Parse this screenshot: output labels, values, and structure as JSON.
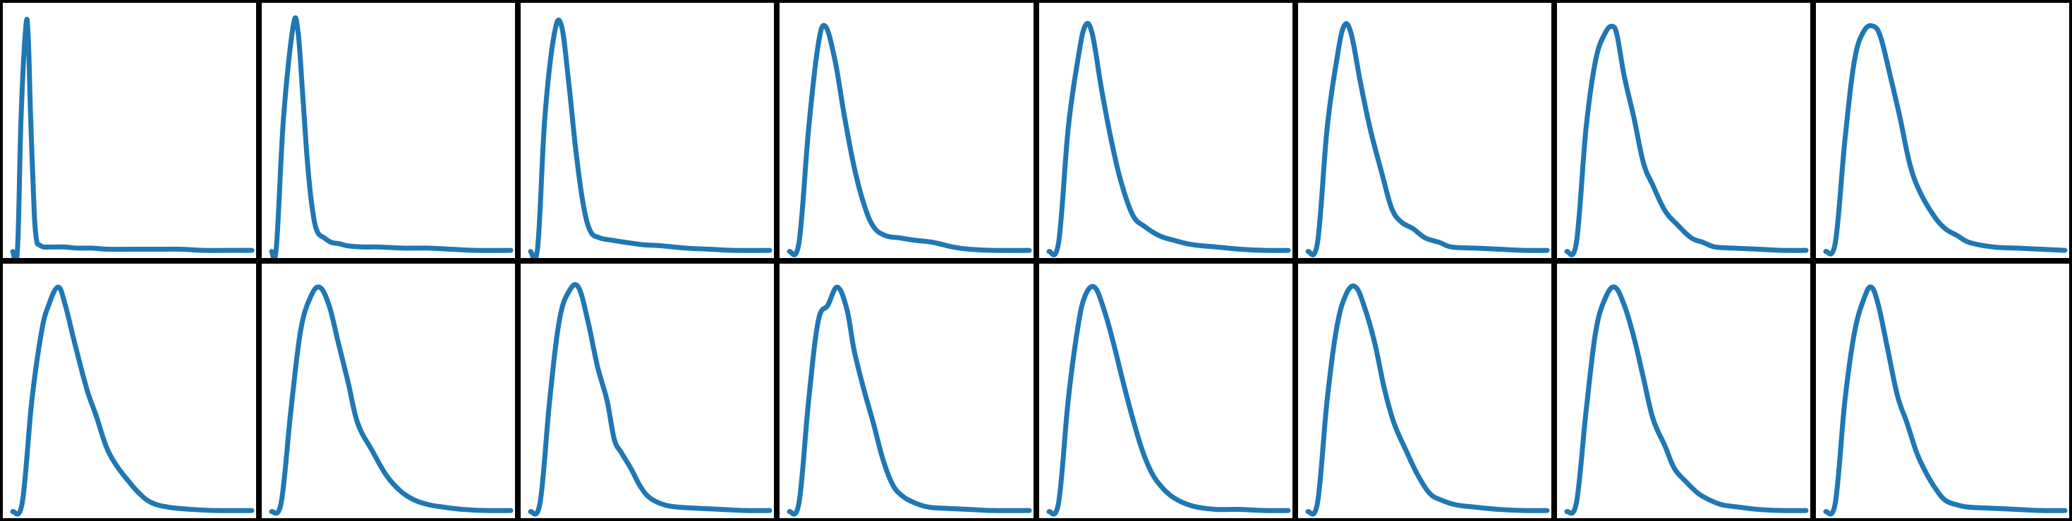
{
  "line_color": "#1f77b4",
  "chart_data": [
    {
      "type": "line",
      "x": [
        0,
        0.02,
        0.035,
        0.055,
        0.065,
        0.075,
        0.09,
        0.1,
        0.11,
        0.13,
        0.15,
        0.18,
        0.22,
        0.27,
        0.33,
        0.4,
        0.5,
        0.6,
        0.7,
        0.8,
        0.9,
        1
      ],
      "y": [
        0.01,
        0.02,
        0.6,
        1.0,
        0.95,
        0.6,
        0.18,
        0.06,
        0.04,
        0.03,
        0.03,
        0.03,
        0.03,
        0.025,
        0.025,
        0.02,
        0.02,
        0.02,
        0.02,
        0.015,
        0.015,
        0.015
      ],
      "ylim": [
        0,
        1.06
      ]
    },
    {
      "type": "line",
      "x": [
        0,
        0.02,
        0.05,
        0.09,
        0.11,
        0.13,
        0.15,
        0.17,
        0.19,
        0.22,
        0.25,
        0.28,
        0.32,
        0.38,
        0.45,
        0.55,
        0.65,
        0.75,
        0.85,
        1
      ],
      "y": [
        0.01,
        0.03,
        0.6,
        1.0,
        0.98,
        0.7,
        0.4,
        0.2,
        0.1,
        0.07,
        0.05,
        0.045,
        0.035,
        0.03,
        0.03,
        0.025,
        0.025,
        0.02,
        0.015,
        0.015
      ],
      "ylim": [
        0,
        1.06
      ]
    },
    {
      "type": "line",
      "x": [
        0,
        0.03,
        0.06,
        0.1,
        0.13,
        0.16,
        0.19,
        0.22,
        0.25,
        0.29,
        0.34,
        0.4,
        0.47,
        0.55,
        0.65,
        0.75,
        0.85,
        1
      ],
      "y": [
        0.01,
        0.03,
        0.6,
        0.97,
        1.0,
        0.75,
        0.45,
        0.22,
        0.1,
        0.07,
        0.06,
        0.05,
        0.04,
        0.035,
        0.025,
        0.02,
        0.015,
        0.015
      ],
      "ylim": [
        0,
        1.06
      ]
    },
    {
      "type": "line",
      "x": [
        0,
        0.04,
        0.08,
        0.12,
        0.15,
        0.19,
        0.23,
        0.27,
        0.31,
        0.35,
        0.4,
        0.46,
        0.52,
        0.6,
        0.68,
        0.75,
        0.85,
        1
      ],
      "y": [
        0.01,
        0.05,
        0.55,
        0.92,
        1.0,
        0.85,
        0.6,
        0.38,
        0.22,
        0.12,
        0.08,
        0.07,
        0.06,
        0.05,
        0.03,
        0.02,
        0.015,
        0.015
      ],
      "ylim": [
        0,
        1.06
      ]
    },
    {
      "type": "line",
      "x": [
        0,
        0.04,
        0.08,
        0.12,
        0.15,
        0.18,
        0.22,
        0.26,
        0.3,
        0.35,
        0.4,
        0.46,
        0.52,
        0.6,
        0.7,
        0.8,
        0.9,
        1
      ],
      "y": [
        0.01,
        0.05,
        0.55,
        0.85,
        1.0,
        0.97,
        0.72,
        0.5,
        0.32,
        0.17,
        0.12,
        0.08,
        0.06,
        0.04,
        0.03,
        0.02,
        0.015,
        0.015
      ],
      "ylim": [
        0,
        1.06
      ]
    },
    {
      "type": "line",
      "x": [
        0,
        0.04,
        0.08,
        0.12,
        0.15,
        0.18,
        0.22,
        0.26,
        0.31,
        0.35,
        0.39,
        0.44,
        0.49,
        0.55,
        0.6,
        0.7,
        0.8,
        0.9,
        1
      ],
      "y": [
        0.01,
        0.05,
        0.55,
        0.85,
        1.0,
        0.97,
        0.75,
        0.55,
        0.35,
        0.2,
        0.14,
        0.11,
        0.07,
        0.05,
        0.03,
        0.025,
        0.02,
        0.015,
        0.015
      ],
      "ylim": [
        0,
        1.06
      ]
    },
    {
      "type": "line",
      "x": [
        0,
        0.04,
        0.08,
        0.12,
        0.16,
        0.19,
        0.21,
        0.24,
        0.28,
        0.32,
        0.36,
        0.41,
        0.46,
        0.52,
        0.57,
        0.62,
        0.7,
        0.8,
        0.9,
        1
      ],
      "y": [
        0.01,
        0.05,
        0.55,
        0.85,
        0.97,
        1.0,
        0.96,
        0.78,
        0.6,
        0.4,
        0.3,
        0.19,
        0.13,
        0.07,
        0.05,
        0.03,
        0.025,
        0.02,
        0.015,
        0.015
      ],
      "ylim": [
        0,
        1.06
      ]
    },
    {
      "type": "line",
      "x": [
        0,
        0.04,
        0.08,
        0.12,
        0.16,
        0.2,
        0.23,
        0.27,
        0.31,
        0.35,
        0.39,
        0.45,
        0.5,
        0.55,
        0.6,
        0.7,
        0.8,
        0.9,
        1
      ],
      "y": [
        0.01,
        0.05,
        0.5,
        0.85,
        0.98,
        1.0,
        0.95,
        0.78,
        0.6,
        0.4,
        0.28,
        0.17,
        0.11,
        0.08,
        0.05,
        0.03,
        0.025,
        0.02,
        0.015
      ],
      "ylim": [
        0,
        1.06
      ]
    },
    {
      "type": "line",
      "x": [
        0,
        0.04,
        0.08,
        0.12,
        0.15,
        0.19,
        0.22,
        0.26,
        0.31,
        0.35,
        0.39,
        0.43,
        0.48,
        0.53,
        0.58,
        0.65,
        0.75,
        0.85,
        1
      ],
      "y": [
        0.01,
        0.05,
        0.5,
        0.8,
        0.92,
        1.0,
        0.92,
        0.75,
        0.55,
        0.43,
        0.3,
        0.22,
        0.15,
        0.09,
        0.05,
        0.03,
        0.02,
        0.015,
        0.015
      ],
      "ylim": [
        0,
        1.06
      ]
    },
    {
      "type": "line",
      "x": [
        0,
        0.04,
        0.08,
        0.12,
        0.16,
        0.2,
        0.24,
        0.28,
        0.32,
        0.36,
        0.42,
        0.48,
        0.54,
        0.6,
        0.66,
        0.72,
        0.8,
        0.9,
        1
      ],
      "y": [
        0.01,
        0.05,
        0.45,
        0.8,
        0.95,
        1.0,
        0.92,
        0.75,
        0.58,
        0.4,
        0.28,
        0.17,
        0.1,
        0.06,
        0.04,
        0.03,
        0.02,
        0.015,
        0.015
      ],
      "ylim": [
        0,
        1.06
      ]
    },
    {
      "type": "line",
      "x": [
        0,
        0.04,
        0.08,
        0.12,
        0.16,
        0.2,
        0.24,
        0.28,
        0.32,
        0.35,
        0.38,
        0.42,
        0.46,
        0.5,
        0.56,
        0.62,
        0.7,
        0.8,
        0.9,
        1
      ],
      "y": [
        0.01,
        0.05,
        0.5,
        0.85,
        0.98,
        1.0,
        0.85,
        0.65,
        0.5,
        0.33,
        0.27,
        0.2,
        0.12,
        0.07,
        0.04,
        0.03,
        0.025,
        0.02,
        0.015,
        0.015
      ],
      "ylim": [
        0,
        1.06
      ]
    },
    {
      "type": "line",
      "x": [
        0,
        0.04,
        0.08,
        0.12,
        0.16,
        0.2,
        0.24,
        0.27,
        0.31,
        0.35,
        0.39,
        0.43,
        0.47,
        0.52,
        0.58,
        0.65,
        0.75,
        0.85,
        1
      ],
      "y": [
        0.01,
        0.05,
        0.5,
        0.85,
        0.92,
        1.0,
        0.9,
        0.72,
        0.55,
        0.4,
        0.24,
        0.13,
        0.08,
        0.05,
        0.03,
        0.025,
        0.02,
        0.015,
        0.015
      ],
      "ylim": [
        0,
        1.06
      ]
    },
    {
      "type": "line",
      "x": [
        0,
        0.04,
        0.08,
        0.12,
        0.15,
        0.19,
        0.23,
        0.27,
        0.31,
        0.35,
        0.39,
        0.43,
        0.47,
        0.51,
        0.56,
        0.62,
        0.7,
        0.8,
        0.9,
        1
      ],
      "y": [
        0.01,
        0.05,
        0.5,
        0.82,
        0.96,
        1.0,
        0.9,
        0.75,
        0.58,
        0.42,
        0.28,
        0.18,
        0.12,
        0.08,
        0.05,
        0.03,
        0.02,
        0.02,
        0.015,
        0.015
      ],
      "ylim": [
        0,
        1.06
      ]
    },
    {
      "type": "line",
      "x": [
        0,
        0.04,
        0.08,
        0.12,
        0.16,
        0.2,
        0.24,
        0.28,
        0.32,
        0.36,
        0.41,
        0.46,
        0.51,
        0.56,
        0.62,
        0.7,
        0.8,
        0.9,
        1
      ],
      "y": [
        0.01,
        0.05,
        0.5,
        0.82,
        0.97,
        1.0,
        0.9,
        0.75,
        0.55,
        0.4,
        0.28,
        0.17,
        0.09,
        0.06,
        0.04,
        0.03,
        0.02,
        0.015,
        0.015
      ],
      "ylim": [
        0,
        1.06
      ]
    },
    {
      "type": "line",
      "x": [
        0,
        0.04,
        0.08,
        0.12,
        0.16,
        0.2,
        0.24,
        0.28,
        0.32,
        0.36,
        0.41,
        0.45,
        0.5,
        0.55,
        0.6,
        0.65,
        0.72,
        0.8,
        0.9,
        1
      ],
      "y": [
        0.01,
        0.05,
        0.45,
        0.8,
        0.95,
        1.0,
        0.92,
        0.78,
        0.6,
        0.42,
        0.3,
        0.2,
        0.14,
        0.09,
        0.06,
        0.04,
        0.03,
        0.02,
        0.015,
        0.015
      ],
      "ylim": [
        0,
        1.06
      ]
    },
    {
      "type": "line",
      "x": [
        0,
        0.04,
        0.08,
        0.12,
        0.16,
        0.19,
        0.22,
        0.26,
        0.3,
        0.34,
        0.38,
        0.42,
        0.46,
        0.5,
        0.55,
        0.6,
        0.7,
        0.8,
        0.9,
        1
      ],
      "y": [
        0.01,
        0.05,
        0.5,
        0.8,
        0.95,
        1.0,
        0.92,
        0.72,
        0.52,
        0.4,
        0.27,
        0.18,
        0.11,
        0.06,
        0.04,
        0.03,
        0.025,
        0.02,
        0.015,
        0.015
      ],
      "ylim": [
        0,
        1.06
      ]
    }
  ]
}
